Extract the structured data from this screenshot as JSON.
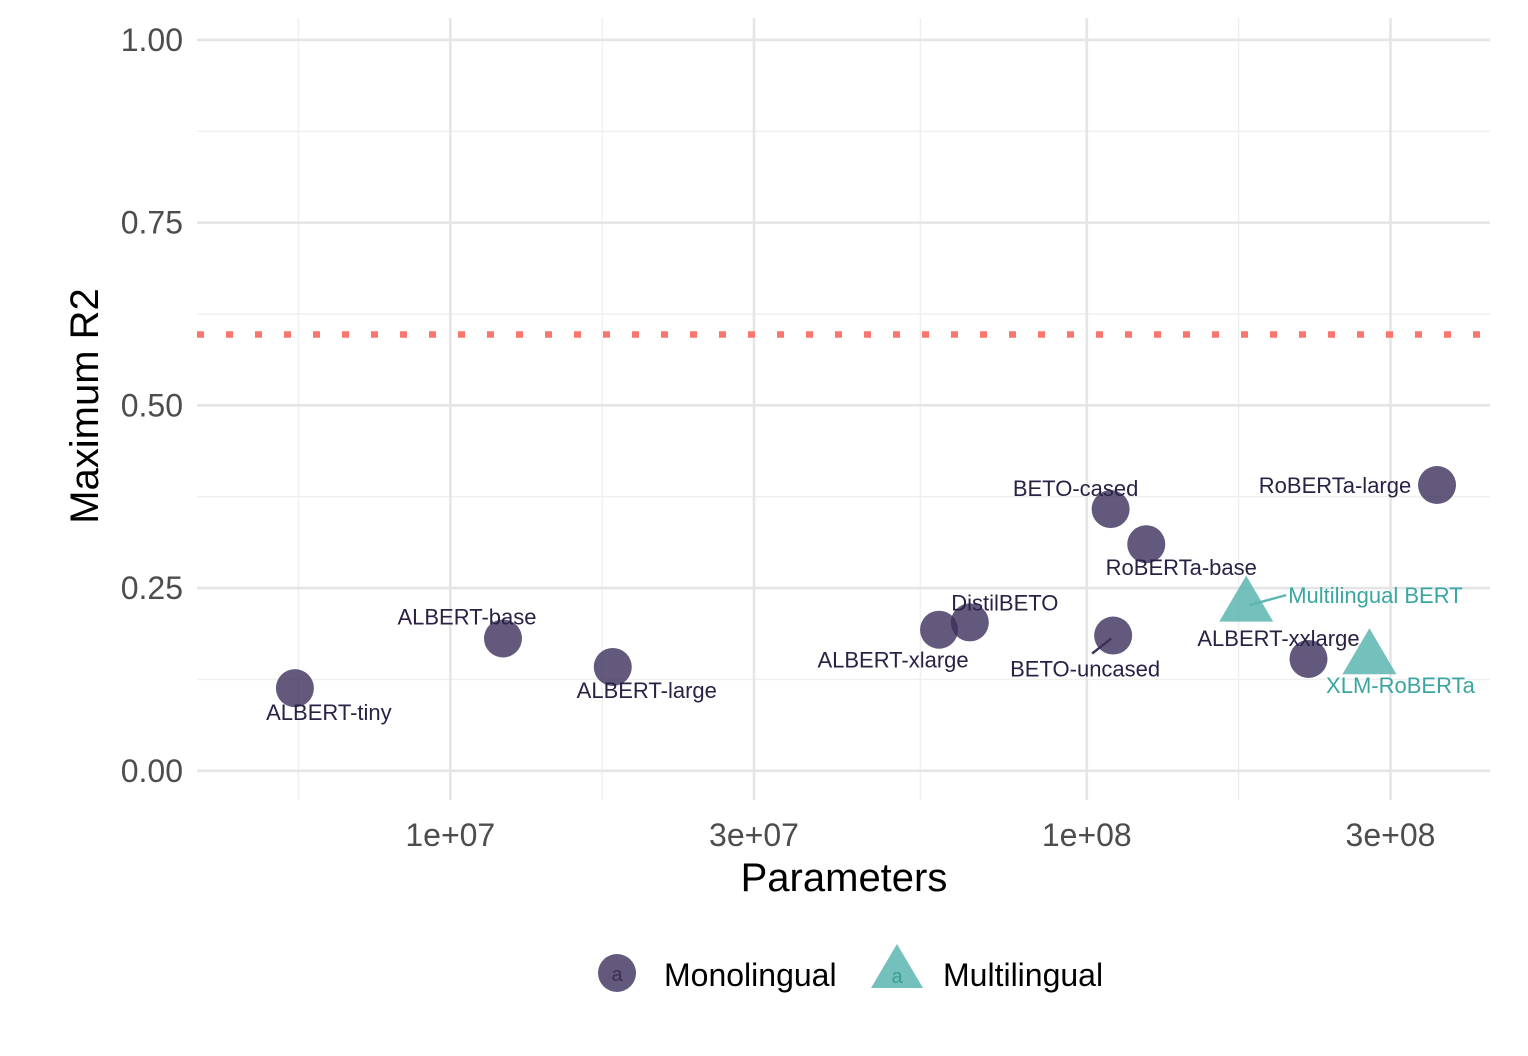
{
  "chart_data": {
    "type": "scatter",
    "xlabel": "Parameters",
    "ylabel": "Maximum R2",
    "x_scale": "log10",
    "xlim": [
      4000000,
      430000000
    ],
    "ylim": [
      -0.04,
      1.03
    ],
    "x_ticks": [
      {
        "value": 10000000,
        "label": "1e+07"
      },
      {
        "value": 30000000,
        "label": "3e+07"
      },
      {
        "value": 100000000,
        "label": "1e+08"
      },
      {
        "value": 300000000,
        "label": "3e+08"
      }
    ],
    "y_ticks": [
      {
        "value": 0.0,
        "label": "0.00"
      },
      {
        "value": 0.25,
        "label": "0.25"
      },
      {
        "value": 0.5,
        "label": "0.50"
      },
      {
        "value": 0.75,
        "label": "0.75"
      },
      {
        "value": 1.0,
        "label": "1.00"
      }
    ],
    "reference_line": {
      "y": 0.597,
      "style": "dotted",
      "color": "#f8766d"
    },
    "grid": true,
    "legend": {
      "position": "bottom"
    },
    "series": [
      {
        "name": "Monolingual",
        "marker": "circle",
        "color": "#3b2f5b",
        "points": [
          {
            "label": "ALBERT-tiny",
            "x": 5700000,
            "y": 0.113
          },
          {
            "label": "ALBERT-base",
            "x": 12100000,
            "y": 0.181
          },
          {
            "label": "ALBERT-large",
            "x": 18000000,
            "y": 0.142
          },
          {
            "label": "ALBERT-xlarge",
            "x": 58600000,
            "y": 0.193
          },
          {
            "label": "DistilBETO",
            "x": 65500000,
            "y": 0.203
          },
          {
            "label": "BETO-cased",
            "x": 109000000,
            "y": 0.358
          },
          {
            "label": "BETO-uncased",
            "x": 110000000,
            "y": 0.185
          },
          {
            "label": "RoBERTa-base",
            "x": 124000000,
            "y": 0.31
          },
          {
            "label": "ALBERT-xxlarge",
            "x": 223000000,
            "y": 0.153
          },
          {
            "label": "RoBERTa-large",
            "x": 355000000,
            "y": 0.391
          }
        ]
      },
      {
        "name": "Multilingual",
        "marker": "triangle",
        "color": "#5bb5b0",
        "points": [
          {
            "label": "Multilingual BERT",
            "x": 178000000,
            "y": 0.228
          },
          {
            "label": "XLM-RoBERTa",
            "x": 278000000,
            "y": 0.156
          }
        ]
      }
    ]
  }
}
